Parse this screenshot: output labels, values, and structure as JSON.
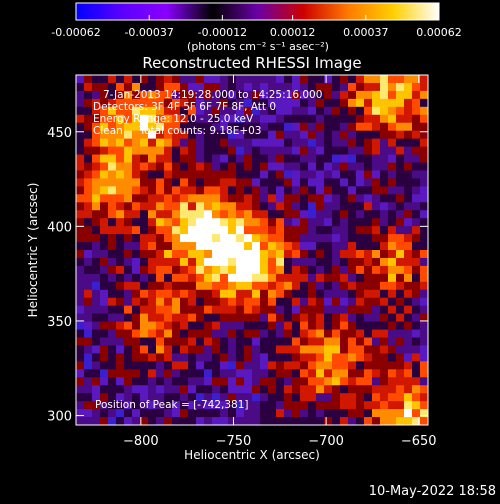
{
  "colorbar": {
    "tick_labels": [
      "-0.00062",
      "-0.00037",
      "-0.00012",
      "0.00012",
      "0.00037",
      "0.00062"
    ],
    "tick_values": [
      -0.00062,
      -0.00037,
      -0.00012,
      0.00012,
      0.00037,
      0.00062
    ],
    "range": [
      -0.00062,
      0.00062
    ],
    "unit_label": "(photons cm⁻² s⁻¹ asec⁻²)",
    "colors": [
      "#0000ff",
      "#5a00ff",
      "#8a00ff",
      "#000000",
      "#6a00a8",
      "#cc0000",
      "#ff7a00",
      "#ffd000",
      "#ffffff"
    ]
  },
  "chart_data": {
    "type": "heatmap",
    "title": "Reconstructed RHESSI Image",
    "xlabel": "Heliocentric X (arcsec)",
    "ylabel": "Heliocentric Y (arcsec)",
    "xlim": [
      -835,
      -645
    ],
    "ylim": [
      295,
      480
    ],
    "x_ticks": [
      -800,
      -750,
      -700,
      -650
    ],
    "y_ticks": [
      300,
      350,
      400,
      450
    ],
    "x_tick_labels": [
      "−800",
      "−750",
      "−700",
      "−650"
    ],
    "y_tick_labels": [
      "300",
      "350",
      "400",
      "450"
    ],
    "annotations": [
      "7-Jan-2013 14:19:28.000 to 14:25:16.000",
      "Detectors: 3F 4F 5F 6F 7F 8F, Att 0",
      "Energy Range: 12.0 - 25.0 keV",
      "Clean     Total counts: 9.18E+03"
    ],
    "peak_label": "Position of Peak = [-742,381]",
    "peak_position": [
      -742,
      381
    ],
    "bright_sources": [
      {
        "x": -742,
        "y": 381,
        "level": 1.0
      },
      {
        "x": -770,
        "y": 400,
        "level": 0.85
      },
      {
        "x": -800,
        "y": 455,
        "level": 0.8
      },
      {
        "x": -665,
        "y": 470,
        "level": 0.75
      },
      {
        "x": -655,
        "y": 300,
        "level": 0.7
      },
      {
        "x": -820,
        "y": 420,
        "level": 0.6
      },
      {
        "x": -700,
        "y": 330,
        "level": 0.6
      },
      {
        "x": -790,
        "y": 350,
        "level": 0.5
      },
      {
        "x": -665,
        "y": 380,
        "level": 0.5
      }
    ]
  },
  "footer": {
    "date_stamp": "10-May-2022 18:58"
  }
}
